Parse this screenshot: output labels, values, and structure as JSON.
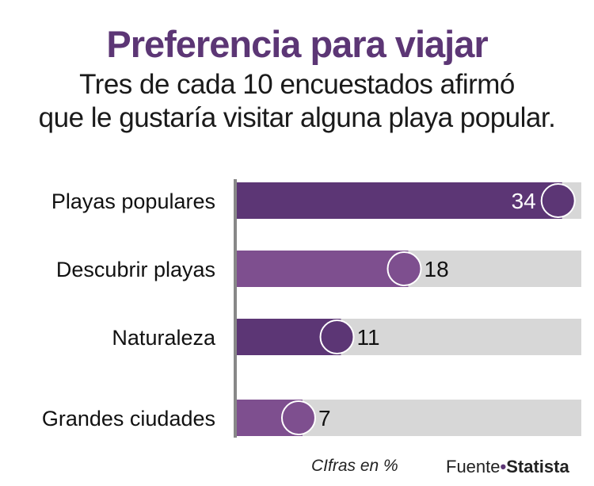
{
  "title": "Preferencia para viajar",
  "subtitle_line1": "Tres de cada 10 encuestados afirmó",
  "subtitle_line2": "que le gustaría visitar alguna playa popular.",
  "footnote": "CIfras en %",
  "source_prefix": "Fuente",
  "source_dot": "•",
  "source_name": "Statista",
  "colors": {
    "title": "#5c3675",
    "bar_dark": "#5c3675",
    "bar_light": "#7e4f8f",
    "track": "#d7d7d7",
    "axis": "#888888"
  },
  "chart_data": {
    "type": "bar",
    "orientation": "horizontal",
    "categories": [
      "Playas populares",
      "Descubrir playas",
      "Naturaleza",
      "Grandes ciudades"
    ],
    "values": [
      34,
      18,
      11,
      7
    ],
    "value_labels": [
      "34",
      "18",
      "11",
      "7"
    ],
    "bar_colors": [
      "#5c3675",
      "#7e4f8f",
      "#5c3675",
      "#7e4f8f"
    ],
    "unit": "%",
    "xlim": [
      0,
      36
    ]
  }
}
